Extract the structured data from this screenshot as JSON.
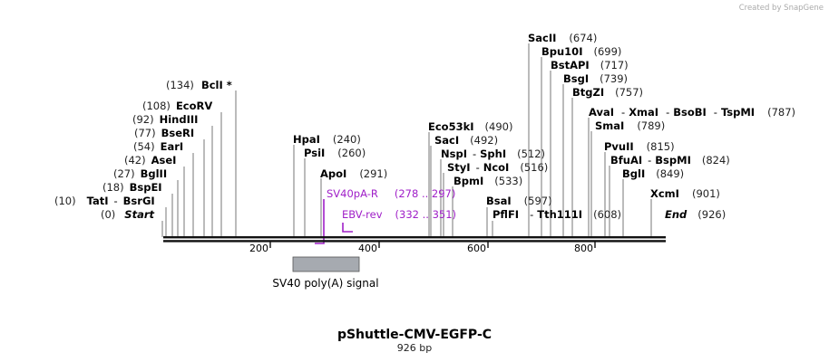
{
  "credit": "Created by SnapGene",
  "plasmid": {
    "name": "pShuttle-CMV-EGFP-C",
    "length_label": "926 bp"
  },
  "ruler": {
    "ticks": [
      "200",
      "400",
      "600",
      "800"
    ]
  },
  "ends": {
    "start_label": "Start",
    "start_pos": "(0)",
    "end_label": "End",
    "end_pos": "(926)"
  },
  "sites": [
    {
      "name": "TatI",
      "sep": "-",
      "name2": "BsrGI",
      "pos": "(10)"
    },
    {
      "name": "BspEI",
      "pos": "(18)"
    },
    {
      "name": "BglII",
      "pos": "(27)"
    },
    {
      "name": "AseI",
      "pos": "(42)"
    },
    {
      "name": "EarI",
      "pos": "(54)"
    },
    {
      "name": "BseRI",
      "pos": "(77)"
    },
    {
      "name": "HindIII",
      "pos": "(92)"
    },
    {
      "name": "EcoRV",
      "pos": "(108)"
    },
    {
      "name": "BclI *",
      "pos": "(134)"
    },
    {
      "name": "HpaI",
      "pos": "(240)"
    },
    {
      "name": "PsiI",
      "pos": "(260)"
    },
    {
      "name": "ApoI",
      "pos": "(291)"
    },
    {
      "name": "Eco53kI",
      "pos": "(490)"
    },
    {
      "name": "SacI",
      "pos": "(492)"
    },
    {
      "name": "NspI",
      "sep": "-",
      "name2": "SphI",
      "pos": "(512)"
    },
    {
      "name": "StyI",
      "sep": "-",
      "name2": "NcoI",
      "pos": "(516)"
    },
    {
      "name": "BpmI",
      "pos": "(533)"
    },
    {
      "name": "BsaI",
      "pos": "(597)"
    },
    {
      "name": "PflFI",
      "sep": "-",
      "name2": "Tth111I",
      "pos": "(608)"
    },
    {
      "name": "SacII",
      "pos": "(674)"
    },
    {
      "name": "Bpu10I",
      "pos": "(699)"
    },
    {
      "name": "BstAPI",
      "pos": "(717)"
    },
    {
      "name": "BsgI",
      "pos": "(739)"
    },
    {
      "name": "BtgZI",
      "pos": "(757)"
    },
    {
      "name": "AvaI",
      "sep": "-",
      "name2": "XmaI",
      "sep2": "-",
      "name3": "BsoBI",
      "sep3": "-",
      "name4": "TspMI",
      "pos": "(787)"
    },
    {
      "name": "SmaI",
      "pos": "(789)"
    },
    {
      "name": "PvuII",
      "pos": "(815)"
    },
    {
      "name": "BfuAI",
      "sep": "-",
      "name2": "BspMI",
      "pos": "(824)"
    },
    {
      "name": "BglI",
      "pos": "(849)"
    },
    {
      "name": "XcmI",
      "pos": "(901)"
    }
  ],
  "primers": [
    {
      "name": "SV40pA-R",
      "range": "(278 .. 297)"
    },
    {
      "name": "EBV-rev",
      "range": "(332 .. 351)"
    }
  ],
  "feature": {
    "label": "SV40 poly(A) signal"
  },
  "colors": {
    "primer": "#a020c8",
    "feature_fill": "#a6aab0",
    "backbone": "#111111"
  }
}
